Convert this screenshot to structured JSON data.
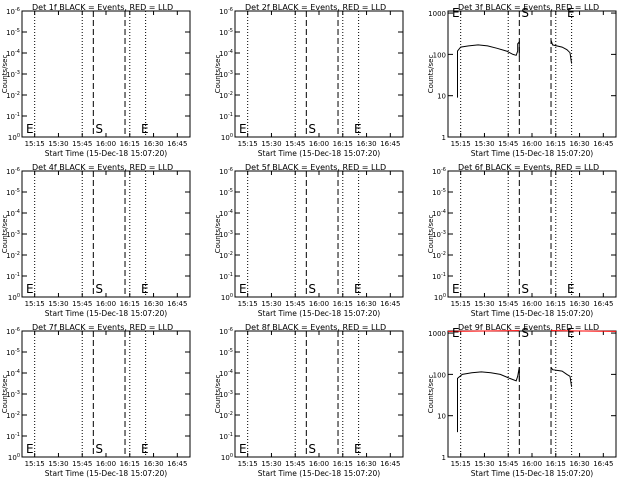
{
  "page": {
    "background": "#ffffff",
    "axis_color": "#000000",
    "event_color": "#000000",
    "lld_color": "#ff0000"
  },
  "chart_data": [
    {
      "id": "det1",
      "type": "line",
      "title": "Det 1f BLACK = Events, RED = LLD",
      "xlabel": "Start Time (15-Dec-18 15:07:20)",
      "ylabel": "Counts/sec",
      "xticks": [
        "15:15",
        "15:30",
        "15:45",
        "16:00",
        "16:15",
        "16:30",
        "16:45"
      ],
      "yscale": "log",
      "ytick_labels": [
        "10^0",
        "10^-1",
        "10^-2",
        "10^-3",
        "10^-4",
        "10^-5",
        "10^-6"
      ],
      "dotted_times": [
        "15:15",
        "15:45",
        "16:15",
        "16:25"
      ],
      "dashed_times": [
        "15:52",
        "16:12"
      ],
      "markers": [
        "E",
        "S",
        "E"
      ],
      "series": []
    },
    {
      "id": "det2",
      "type": "line",
      "title": "Det 2f BLACK = Events, RED = LLD",
      "xlabel": "Start Time (15-Dec-18 15:07:20)",
      "ylabel": "Counts/sec",
      "xticks": [
        "15:15",
        "15:30",
        "15:45",
        "16:00",
        "16:15",
        "16:30",
        "16:45"
      ],
      "yscale": "log",
      "ytick_labels": [
        "10^0",
        "10^-1",
        "10^-2",
        "10^-3",
        "10^-4",
        "10^-5",
        "10^-6"
      ],
      "dotted_times": [
        "15:15",
        "15:45",
        "16:15",
        "16:25"
      ],
      "dashed_times": [
        "15:52",
        "16:12"
      ],
      "markers": [
        "E",
        "S",
        "E"
      ],
      "series": []
    },
    {
      "id": "det3",
      "type": "line",
      "title": "Det 3f BLACK = Events, RED = LLD",
      "xlabel": "Start Time (15-Dec-18 15:07:20)",
      "ylabel": "Counts/sec",
      "xticks": [
        "15:15",
        "15:30",
        "15:45",
        "16:00",
        "16:15",
        "16:30",
        "16:45"
      ],
      "yscale": "log",
      "ytick_labels": [
        "1",
        "10",
        "100",
        "1000"
      ],
      "dotted_times": [
        "15:15",
        "15:45",
        "16:15",
        "16:25"
      ],
      "dashed_times": [
        "15:52",
        "16:12"
      ],
      "markers": [
        "E",
        "S",
        "E"
      ],
      "series": [
        {
          "color": "#000000",
          "points": [
            [
              "15:13",
              9
            ],
            [
              "15:13",
              120
            ],
            [
              "15:15",
              150
            ],
            [
              "15:20",
              160
            ],
            [
              "15:26",
              170
            ],
            [
              "15:32",
              160
            ],
            [
              "15:38",
              140
            ],
            [
              "15:44",
              120
            ],
            [
              "15:48",
              100
            ],
            [
              "15:50",
              95
            ],
            [
              "15:51",
              120
            ],
            [
              "15:51",
              180
            ],
            [
              "15:52",
              200
            ],
            [
              "15:52",
              90
            ]
          ]
        },
        {
          "color": "#000000",
          "points": [
            [
              "16:12",
              220
            ],
            [
              "16:13",
              170
            ],
            [
              "16:19",
              150
            ],
            [
              "16:22",
              130
            ],
            [
              "16:24",
              110
            ],
            [
              "16:25",
              60
            ]
          ]
        }
      ]
    },
    {
      "id": "det4",
      "type": "line",
      "title": "Det 4f BLACK = Events, RED = LLD",
      "xlabel": "Start Time (15-Dec-18 15:07:20)",
      "ylabel": "Counts/sec",
      "xticks": [
        "15:15",
        "15:30",
        "15:45",
        "16:00",
        "16:15",
        "16:30",
        "16:45"
      ],
      "yscale": "log",
      "ytick_labels": [
        "10^0",
        "10^-1",
        "10^-2",
        "10^-3",
        "10^-4",
        "10^-5",
        "10^-6"
      ],
      "dotted_times": [
        "15:15",
        "15:45",
        "16:15",
        "16:25"
      ],
      "dashed_times": [
        "15:52",
        "16:12"
      ],
      "markers": [
        "E",
        "S",
        "E"
      ],
      "series": []
    },
    {
      "id": "det5",
      "type": "line",
      "title": "Det 5f BLACK = Events, RED = LLD",
      "xlabel": "Start Time (15-Dec-18 15:07:20)",
      "ylabel": "Counts/sec",
      "xticks": [
        "15:15",
        "15:30",
        "15:45",
        "16:00",
        "16:15",
        "16:30",
        "16:45"
      ],
      "yscale": "log",
      "ytick_labels": [
        "10^0",
        "10^-1",
        "10^-2",
        "10^-3",
        "10^-4",
        "10^-5",
        "10^-6"
      ],
      "dotted_times": [
        "15:15",
        "15:45",
        "16:15",
        "16:25"
      ],
      "dashed_times": [
        "15:52",
        "16:12"
      ],
      "markers": [
        "E",
        "S",
        "E"
      ],
      "series": []
    },
    {
      "id": "det6",
      "type": "line",
      "title": "Det 6f BLACK = Events, RED = LLD",
      "xlabel": "Start Time (15-Dec-18 15:07:20)",
      "ylabel": "Counts/sec",
      "xticks": [
        "15:15",
        "15:30",
        "15:45",
        "16:00",
        "16:15",
        "16:30",
        "16:45"
      ],
      "yscale": "log",
      "ytick_labels": [
        "10^0",
        "10^-1",
        "10^-2",
        "10^-3",
        "10^-4",
        "10^-5",
        "10^-6"
      ],
      "dotted_times": [
        "15:15",
        "15:45",
        "16:15",
        "16:25"
      ],
      "dashed_times": [
        "15:52",
        "16:12"
      ],
      "markers": [
        "E",
        "S",
        "E"
      ],
      "series": []
    },
    {
      "id": "det7",
      "type": "line",
      "title": "Det 7f BLACK = Events, RED = LLD",
      "xlabel": "Start Time (15-Dec-18 15:07:20)",
      "ylabel": "Counts/sec",
      "xticks": [
        "15:15",
        "15:30",
        "15:45",
        "16:00",
        "16:15",
        "16:30",
        "16:45"
      ],
      "yscale": "log",
      "ytick_labels": [
        "10^0",
        "10^-1",
        "10^-2",
        "10^-3",
        "10^-4",
        "10^-5",
        "10^-6"
      ],
      "dotted_times": [
        "15:15",
        "15:45",
        "16:15",
        "16:25"
      ],
      "dashed_times": [
        "15:52",
        "16:12"
      ],
      "markers": [
        "E",
        "S",
        "E"
      ],
      "series": []
    },
    {
      "id": "det8",
      "type": "line",
      "title": "Det 8f BLACK = Events, RED = LLD",
      "xlabel": "Start Time (15-Dec-18 15:07:20)",
      "ylabel": "Counts/sec",
      "xticks": [
        "15:15",
        "15:30",
        "15:45",
        "16:00",
        "16:15",
        "16:30",
        "16:45"
      ],
      "yscale": "log",
      "ytick_labels": [
        "10^0",
        "10^-1",
        "10^-2",
        "10^-3",
        "10^-4",
        "10^-5",
        "10^-6"
      ],
      "dotted_times": [
        "15:15",
        "15:45",
        "16:15",
        "16:25"
      ],
      "dashed_times": [
        "15:52",
        "16:12"
      ],
      "markers": [
        "E",
        "S",
        "E"
      ],
      "series": []
    },
    {
      "id": "det9",
      "type": "line",
      "title": "Det 9f BLACK = Events, RED = LLD",
      "xlabel": "Start Time (15-Dec-18 15:07:20)",
      "ylabel": "Counts/sec",
      "xticks": [
        "15:15",
        "15:30",
        "15:45",
        "16:00",
        "16:15",
        "16:30",
        "16:45"
      ],
      "yscale": "log",
      "ytick_labels": [
        "1",
        "10",
        "100",
        "1000"
      ],
      "dotted_times": [
        "15:15",
        "15:45",
        "16:15",
        "16:25"
      ],
      "dashed_times": [
        "15:52",
        "16:12"
      ],
      "markers": [
        "E",
        "S",
        "E"
      ],
      "series": [
        {
          "color": "#ff0000",
          "points": [
            [
              "15:07",
              1100
            ],
            [
              "15:52",
              1150
            ]
          ]
        },
        {
          "color": "#ff0000",
          "points": [
            [
              "16:12",
              1150
            ],
            [
              "16:53",
              1100
            ]
          ]
        },
        {
          "color": "#000000",
          "points": [
            [
              "15:13",
              4
            ],
            [
              "15:13",
              80
            ],
            [
              "15:16",
              100
            ],
            [
              "15:22",
              110
            ],
            [
              "15:28",
              115
            ],
            [
              "15:34",
              110
            ],
            [
              "15:40",
              100
            ],
            [
              "15:46",
              80
            ],
            [
              "15:50",
              70
            ],
            [
              "15:51",
              90
            ],
            [
              "15:52",
              150
            ],
            [
              "15:52",
              70
            ]
          ]
        },
        {
          "color": "#000000",
          "points": [
            [
              "16:12",
              150
            ],
            [
              "16:13",
              130
            ],
            [
              "16:19",
              120
            ],
            [
              "16:22",
              100
            ],
            [
              "16:24",
              90
            ],
            [
              "16:25",
              50
            ]
          ]
        }
      ]
    }
  ]
}
